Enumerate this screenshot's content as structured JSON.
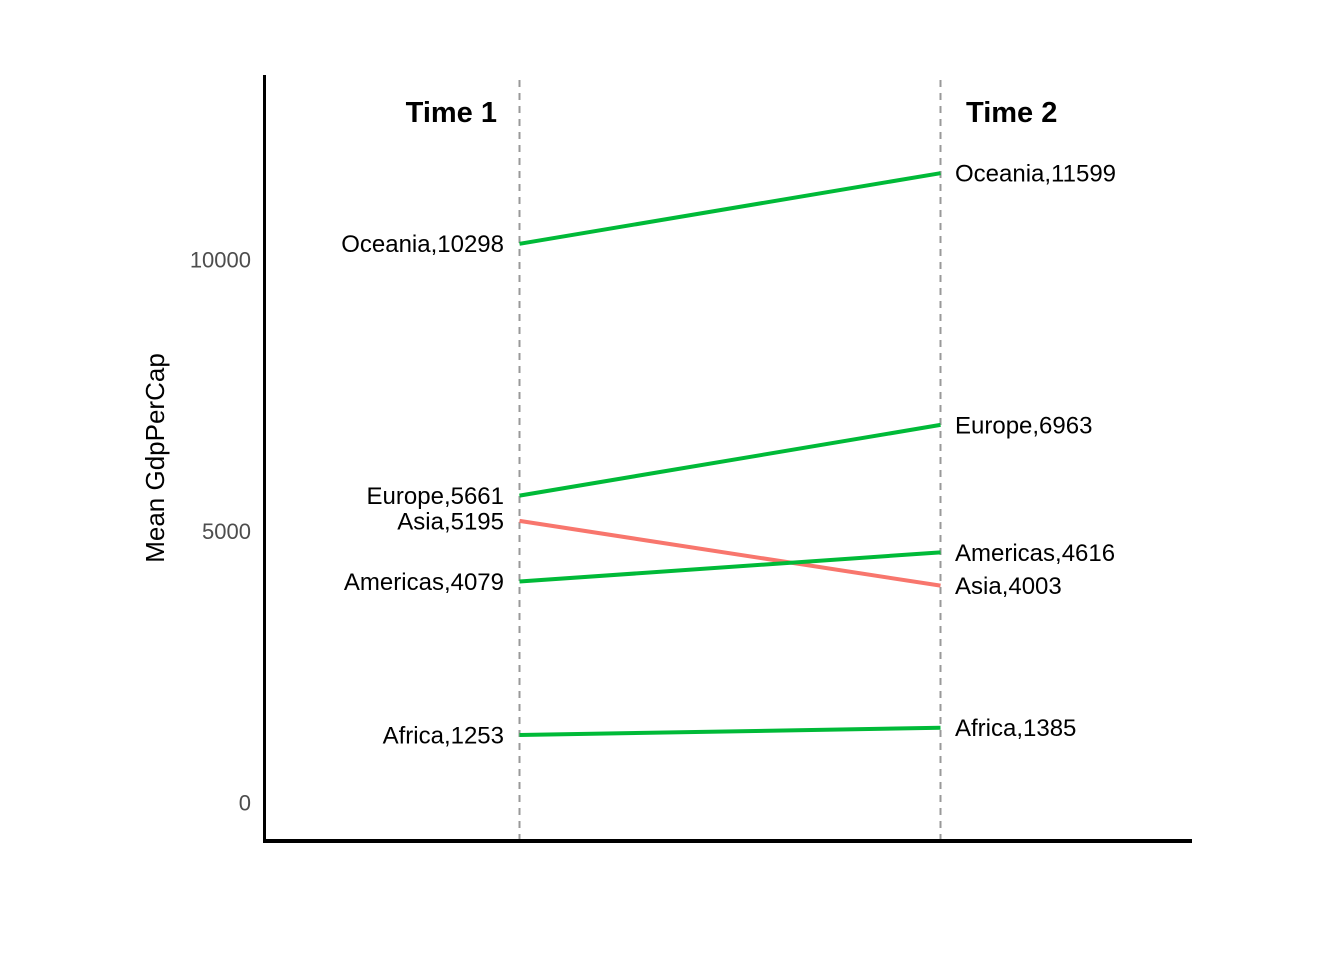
{
  "chart_data": {
    "type": "slope",
    "title": "",
    "ylabel": "Mean GdpPerCap",
    "xlabel": "",
    "columns": [
      "Time 1",
      "Time 2"
    ],
    "yticks": [
      0,
      5000,
      10000
    ],
    "ylim": [
      0,
      13400
    ],
    "grid": false,
    "legend": false,
    "series": [
      {
        "name": "Oceania",
        "values": [
          10298,
          11599
        ],
        "left_label": "Oceania,10298",
        "right_label": "Oceania,11599",
        "trend": "increase",
        "color": "#00BA38"
      },
      {
        "name": "Europe",
        "values": [
          5661,
          6963
        ],
        "left_label": "Europe,5661",
        "right_label": "Europe,6963",
        "trend": "increase",
        "color": "#00BA38"
      },
      {
        "name": "Asia",
        "values": [
          5195,
          4003
        ],
        "left_label": "Asia,5195",
        "right_label": "Asia,4003",
        "trend": "decrease",
        "color": "#F8766D"
      },
      {
        "name": "Americas",
        "values": [
          4079,
          4616
        ],
        "left_label": "Americas,4079",
        "right_label": "Americas,4616",
        "trend": "increase",
        "color": "#00BA38"
      },
      {
        "name": "Africa",
        "values": [
          1253,
          1385
        ],
        "left_label": "Africa,1253",
        "right_label": "Africa,1385",
        "trend": "increase",
        "color": "#00BA38"
      }
    ],
    "colors": {
      "increase": "#00BA38",
      "decrease": "#F8766D",
      "axis": "#000000",
      "divider": "#999999",
      "tick_text": "#4D4D4D"
    }
  }
}
